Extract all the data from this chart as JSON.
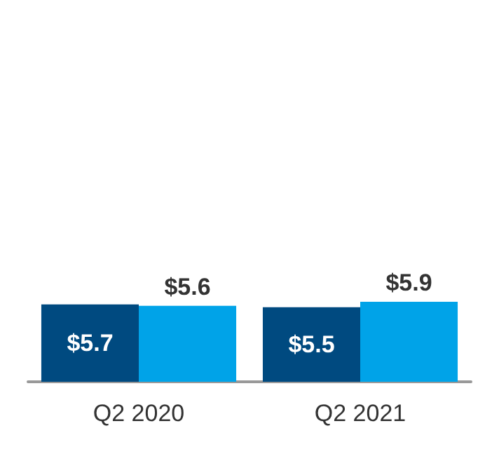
{
  "chart_data": {
    "type": "bar",
    "categories": [
      "Q2 2020",
      "Q2 2021"
    ],
    "series": [
      {
        "color": "#004a80",
        "values": [
          5.7,
          5.5
        ],
        "value_labels": [
          "$5.7",
          "$5.5"
        ]
      },
      {
        "color": "#00a3e8",
        "values": [
          5.6,
          5.9
        ],
        "value_labels": [
          "$5.6",
          "$5.9"
        ]
      }
    ],
    "tick_labels": "x"
  }
}
